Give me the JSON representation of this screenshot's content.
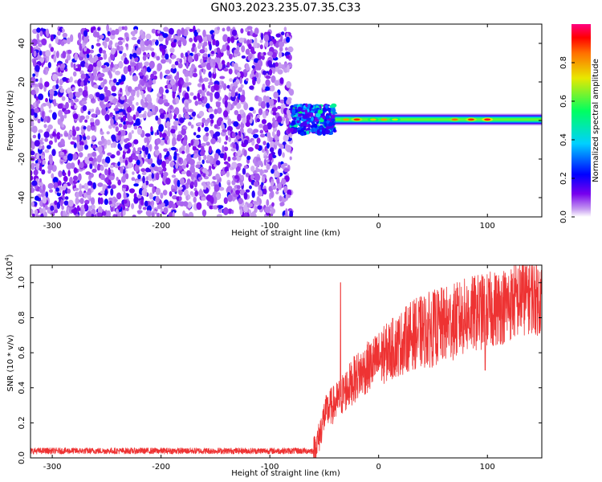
{
  "figure": {
    "title": "GN03.2023.235.07.35.C33"
  },
  "chart_data": [
    {
      "type": "heatmap",
      "xlabel": "Height of straight line (km)",
      "ylabel": "Frequency (Hz)",
      "xlim": [
        -320,
        150
      ],
      "ylim": [
        -50,
        50
      ],
      "xticks": [
        -300,
        -200,
        -100,
        0,
        100
      ],
      "yticks": [
        -40,
        -20,
        0,
        20,
        40
      ],
      "colorbar": {
        "label": "Normalized spectral amplitude",
        "range": [
          0,
          1
        ],
        "ticks": [
          0.0,
          0.2,
          0.4,
          0.6,
          0.8
        ],
        "colormap": [
          "#ffffff",
          "#c69cf0",
          "#7700ee",
          "#0000ff",
          "#00d0ff",
          "#00ff60",
          "#e8e800",
          "#ff7000",
          "#ff0000",
          "#ff0080"
        ]
      },
      "regions": [
        {
          "name": "noise",
          "x": [
            -320,
            -80
          ],
          "y": [
            -50,
            48
          ],
          "amplitude": [
            0.02,
            0.25
          ]
        },
        {
          "name": "onset",
          "x": [
            -80,
            -40
          ],
          "y": [
            -7,
            8
          ],
          "amplitude": [
            0.2,
            0.6
          ]
        },
        {
          "name": "signal-band",
          "x": [
            -40,
            150
          ],
          "center_hz": 0.5,
          "half_width_hz": 3,
          "amplitude_peak": 1.0
        }
      ],
      "grid": false
    },
    {
      "type": "line",
      "xlabel": "Height of straight line (km)",
      "ylabel": "SNR (10 * v/v)",
      "scale_label_base": "(x10",
      "scale_label_exp": "4",
      "scale_label_close": ")",
      "xlim": [
        -320,
        150
      ],
      "ylim": [
        0,
        1.1
      ],
      "xticks": [
        -300,
        -200,
        -100,
        0,
        100
      ],
      "yticks": [
        0.0,
        0.2,
        0.4,
        0.6,
        0.8,
        1.0
      ],
      "series": [
        {
          "color": "#ee3333",
          "envelope_x": [
            -320,
            -60,
            -55,
            -50,
            -45,
            -40,
            -30,
            -20,
            -10,
            0,
            10,
            20,
            30,
            40,
            50,
            60,
            70,
            80,
            90,
            100,
            110,
            120,
            130,
            140,
            150
          ],
          "envelope_y": [
            0.04,
            0.04,
            0.12,
            0.25,
            0.3,
            0.32,
            0.4,
            0.48,
            0.53,
            0.58,
            0.63,
            0.67,
            0.72,
            0.74,
            0.76,
            0.78,
            0.8,
            0.83,
            0.85,
            0.86,
            0.88,
            0.9,
            0.93,
            0.95,
            0.93
          ],
          "spikes": [
            {
              "x": -35,
              "y": 1.0
            },
            {
              "x": 98,
              "y": 0.5
            },
            {
              "x": 132,
              "y": 1.1
            }
          ]
        }
      ],
      "grid": false
    }
  ]
}
